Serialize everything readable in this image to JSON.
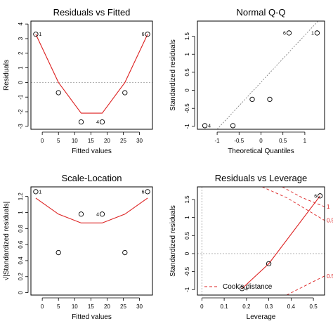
{
  "chart_data": [
    {
      "type": "scatter",
      "title": "Residuals vs Fitted",
      "xlabel": "Fitted values",
      "ylabel": "Residuals",
      "xlim": [
        -3.5,
        34
      ],
      "ylim": [
        -3.2,
        4.2
      ],
      "x_ticks": [
        0,
        5,
        10,
        15,
        20,
        25,
        30
      ],
      "y_ticks": [
        -3,
        -2,
        -1,
        0,
        1,
        2,
        3,
        4
      ],
      "reference_line": 0,
      "points": [
        {
          "x": -2,
          "y": 3.3,
          "label": "1"
        },
        {
          "x": 5,
          "y": -0.7,
          "label": ""
        },
        {
          "x": 12,
          "y": -2.7,
          "label": ""
        },
        {
          "x": 18.5,
          "y": -2.7,
          "label": "4"
        },
        {
          "x": 25.5,
          "y": -0.7,
          "label": ""
        },
        {
          "x": 32.5,
          "y": 3.3,
          "label": "6"
        }
      ],
      "smooth": [
        [
          -2,
          3.3
        ],
        [
          5,
          0
        ],
        [
          12,
          -2.1
        ],
        [
          18.5,
          -2.1
        ],
        [
          25.5,
          0
        ],
        [
          32.5,
          3.3
        ]
      ]
    },
    {
      "type": "scatter",
      "title": "Normal Q-Q",
      "xlabel": "Theoretical Quantiles",
      "ylabel": "Standardized residuals",
      "xlim": [
        -1.45,
        1.45
      ],
      "ylim": [
        -1.08,
        1.92
      ],
      "x_ticks": [
        -1.0,
        -0.5,
        0.0,
        0.5,
        1.0
      ],
      "y_ticks": [
        -1.0,
        -0.5,
        0.0,
        0.5,
        1.0,
        1.5
      ],
      "reference_line": [
        [
          -1.0,
          -1.08
        ],
        [
          1.3,
          1.92
        ]
      ],
      "points": [
        {
          "x": -1.28,
          "y": -0.98,
          "label": "4"
        },
        {
          "x": -0.64,
          "y": -0.98,
          "label": ""
        },
        {
          "x": -0.2,
          "y": -0.25,
          "label": ""
        },
        {
          "x": 0.2,
          "y": -0.25,
          "label": ""
        },
        {
          "x": 0.64,
          "y": 1.59,
          "label": "6"
        },
        {
          "x": 1.28,
          "y": 1.59,
          "label": "1"
        }
      ]
    },
    {
      "type": "scatter",
      "title": "Scale-Location",
      "xlabel": "Fitted values",
      "ylabel": "√|Standardized residuals|",
      "xlim": [
        -3.5,
        34
      ],
      "ylim": [
        -0.03,
        1.32
      ],
      "x_ticks": [
        0,
        5,
        10,
        15,
        20,
        25,
        30
      ],
      "y_ticks": [
        0.0,
        0.2,
        0.4,
        0.6,
        0.8,
        1.0,
        1.2
      ],
      "points": [
        {
          "x": -2,
          "y": 1.26,
          "label": "1"
        },
        {
          "x": 5,
          "y": 0.5,
          "label": ""
        },
        {
          "x": 12,
          "y": 0.98,
          "label": ""
        },
        {
          "x": 18.5,
          "y": 0.98,
          "label": "4"
        },
        {
          "x": 25.5,
          "y": 0.5,
          "label": ""
        },
        {
          "x": 32.5,
          "y": 1.26,
          "label": "6"
        }
      ],
      "smooth": [
        [
          -2,
          1.18
        ],
        [
          5,
          0.98
        ],
        [
          12,
          0.87
        ],
        [
          18.5,
          0.87
        ],
        [
          25.5,
          0.98
        ],
        [
          32.5,
          1.18
        ]
      ]
    },
    {
      "type": "scatter",
      "title": "Residuals vs Leverage",
      "xlabel": "Leverage",
      "ylabel": "Standardized residuals",
      "xlim": [
        -0.02,
        0.55
      ],
      "ylim": [
        -1.15,
        1.85
      ],
      "x_ticks": [
        0.0,
        0.1,
        0.2,
        0.3,
        0.4,
        0.5
      ],
      "y_ticks": [
        -1.0,
        -0.5,
        0.0,
        0.5,
        1.0,
        1.5
      ],
      "reference_line": 0,
      "points": [
        {
          "x": 0.18,
          "y": -0.97,
          "label": "4"
        },
        {
          "x": 0.3,
          "y": -0.28,
          "label": ""
        },
        {
          "x": 0.53,
          "y": 1.6,
          "label": "6"
        }
      ],
      "smooth": [
        [
          0.18,
          -0.97
        ],
        [
          0.3,
          -0.28
        ],
        [
          0.53,
          1.6
        ]
      ],
      "cooks_contours": [
        {
          "label": "1",
          "points": [
            [
              0.36,
              1.85
            ],
            [
              0.45,
              1.55
            ],
            [
              0.55,
              1.3
            ]
          ]
        },
        {
          "label": "0.5",
          "points": [
            [
              0.27,
              1.85
            ],
            [
              0.38,
              1.55
            ],
            [
              0.55,
              0.92
            ]
          ]
        },
        {
          "label": "0.5",
          "points": [
            [
              0.38,
              -1.15
            ],
            [
              0.46,
              -0.9
            ],
            [
              0.55,
              -0.62
            ]
          ]
        }
      ],
      "legend": {
        "label": "Cook's distance",
        "placement": "bottom-left",
        "color": "#dd2222"
      }
    }
  ]
}
